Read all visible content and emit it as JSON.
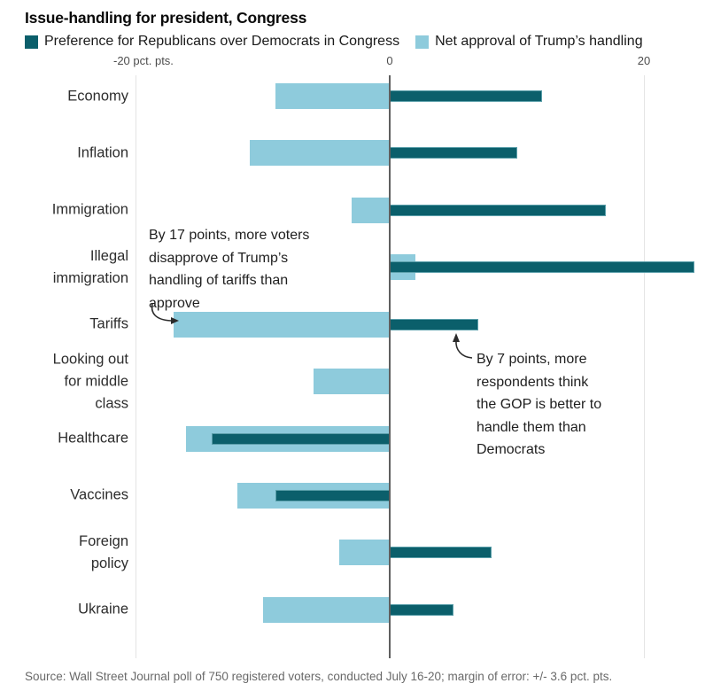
{
  "title": "Issue-handling for president, Congress",
  "legend": [
    {
      "label": "Preference for Republicans over Democrats in Congress",
      "color": "#0b5f6b"
    },
    {
      "label": "Net approval of Trump’s handling",
      "color": "#8ecbdc"
    }
  ],
  "axis": {
    "left_tick_label": "-20 pct. pts.",
    "zero_tick_label": "0",
    "right_tick_label": "20"
  },
  "chart_data": {
    "type": "bar",
    "orientation": "horizontal",
    "title": "Issue-handling for president, Congress",
    "xlabel": "pct. pts.",
    "ylabel": "",
    "xlim": [
      -20,
      24
    ],
    "ticks": [
      -20,
      0,
      20
    ],
    "grid": "vertical-ticks-only",
    "legend_position": "top",
    "categories": [
      "Economy",
      "Inflation",
      "Immigration",
      "Illegal immigration",
      "Tariffs",
      "Looking out for middle class",
      "Healthcare",
      "Vaccines",
      "Foreign policy",
      "Ukraine"
    ],
    "categories_lines": [
      [
        "Economy"
      ],
      [
        "Inflation"
      ],
      [
        "Immigration"
      ],
      [
        "Illegal",
        "immigration"
      ],
      [
        "Tariffs"
      ],
      [
        "Looking out",
        "for middle",
        "class"
      ],
      [
        "Healthcare"
      ],
      [
        "Vaccines"
      ],
      [
        "Foreign",
        "policy"
      ],
      [
        "Ukraine"
      ]
    ],
    "series": [
      {
        "name": "Preference for Republicans over Democrats in Congress",
        "color": "#0b5f6b",
        "values": [
          12,
          10,
          17,
          24,
          7,
          0,
          -14,
          -9,
          8,
          5
        ]
      },
      {
        "name": "Net approval of Trump’s handling",
        "color": "#8ecbdc",
        "values": [
          -9,
          -11,
          -3,
          2,
          -17,
          -6,
          -16,
          -12,
          -4,
          -10
        ]
      }
    ]
  },
  "annotations": [
    {
      "id": "tariffs-disapprove",
      "lines": [
        "By 17 points, more voters",
        "disapprove of Trump’s",
        "handling of tariffs than",
        "approve"
      ]
    },
    {
      "id": "gop-better",
      "lines": [
        "By 7 points, more",
        "respondents think",
        "the GOP is better to",
        "handle them than",
        "Democrats"
      ]
    }
  ],
  "source": "Source: Wall Street Journal poll of 750 registered voters, conducted July 16-20; margin of error: +/- 3.6 pct. pts."
}
